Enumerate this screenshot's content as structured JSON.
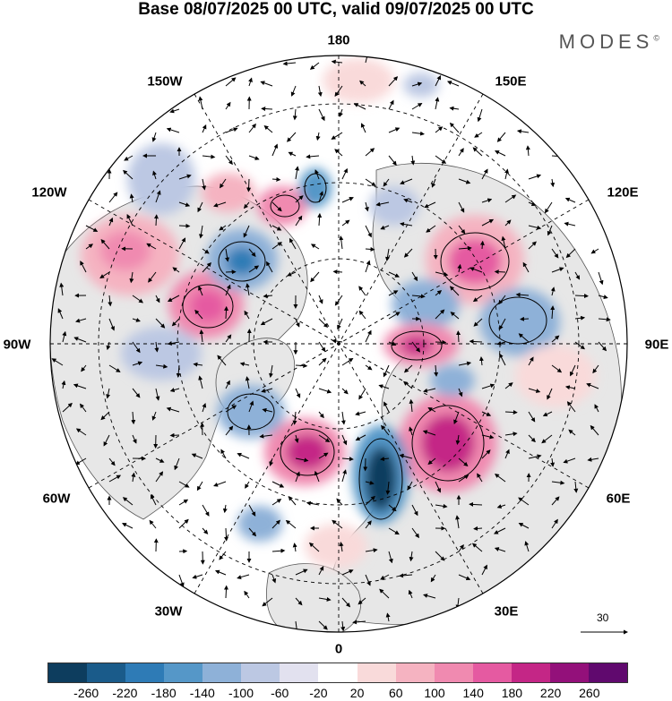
{
  "title": "Base 08/07/2025 00 UTC, valid 09/07/2025 00 UTC",
  "brand": "MODES",
  "brand_mark": "©",
  "longitude_labels": {
    "n180": "180",
    "w150": "150W",
    "e150": "150E",
    "w120": "120W",
    "e120": "120E",
    "w90": "90W",
    "e90": "90E",
    "w60": "60W",
    "e60": "60E",
    "w30": "30W",
    "e30": "30E",
    "s0": "0"
  },
  "reference_vector": {
    "label": "30",
    "arrow_icon": "reference-arrow-icon"
  },
  "colorbar": {
    "colors": [
      "#0d3d5e",
      "#1a5b8a",
      "#2e7bb6",
      "#5597c8",
      "#8eb1d8",
      "#bcc8e3",
      "#e2e1ef",
      "#ffffff",
      "#f9dada",
      "#f5b3c1",
      "#f08ab0",
      "#e55aa1",
      "#c42686",
      "#93107a",
      "#60096e"
    ],
    "tick_labels": [
      "-260",
      "-220",
      "-180",
      "-140",
      "-100",
      "-60",
      "-20",
      "20",
      "60",
      "100",
      "140",
      "180",
      "220",
      "260"
    ]
  },
  "field_colors": {
    "land": "#e7e7e7",
    "ocean": "#ffffff"
  }
}
